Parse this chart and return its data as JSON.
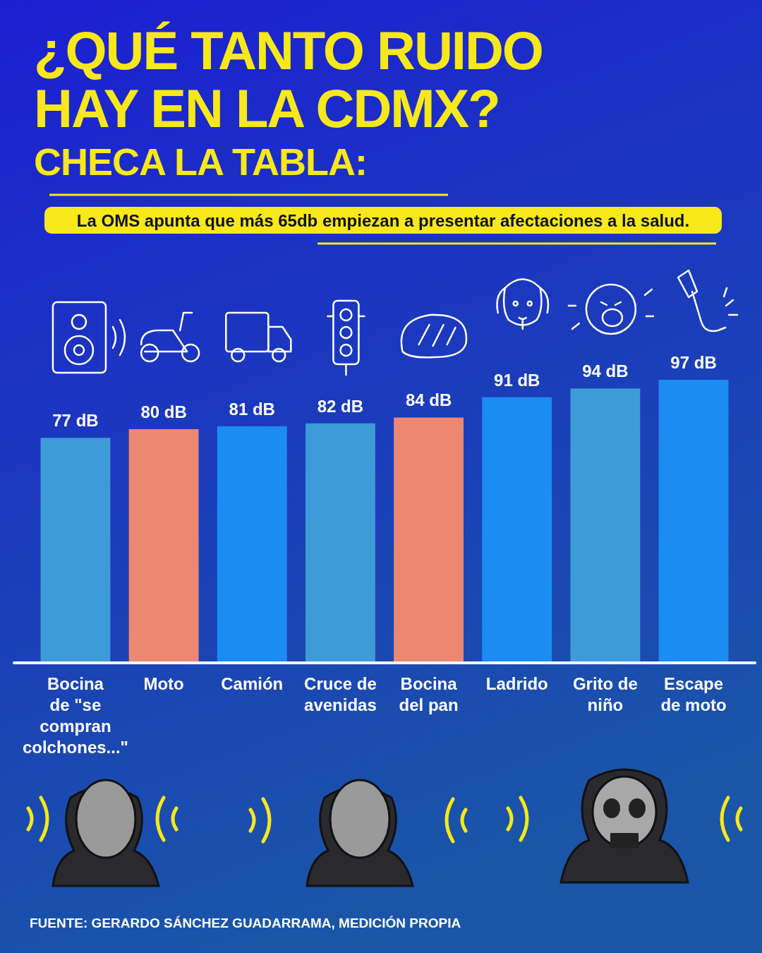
{
  "chart_data": {
    "type": "bar",
    "title": "¿QUÉ TANTO RUIDO HAY EN LA CDMX?",
    "subtitle": "CHECA LA TABLA:",
    "annotations": [
      "La OMS apunta que más 65db empiezan a presentar afectaciones a la salud.",
      "FUENTE: GERARDO SÁNCHEZ GUADARRAMA, MEDICIÓN PROPIA"
    ],
    "categories": [
      "Bocina de \"se compran colchones...\"",
      "Moto",
      "Camión",
      "Cruce de avenidas",
      "Bocina del pan",
      "Ladrido",
      "Grito de niño",
      "Escape de moto"
    ],
    "values": [
      77,
      80,
      81,
      82,
      84,
      91,
      94,
      97
    ],
    "value_labels": [
      "77 dB",
      "80 dB",
      "81 dB",
      "82 dB",
      "84 dB",
      "91 dB",
      "94 dB",
      "97 dB"
    ],
    "colors": [
      "#3d9bd8",
      "#ec8872",
      "#1a8cf2",
      "#3d9bd8",
      "#ec8872",
      "#1a8cf2",
      "#3d9bd8",
      "#1a8cf2"
    ],
    "grid": false
  }
}
